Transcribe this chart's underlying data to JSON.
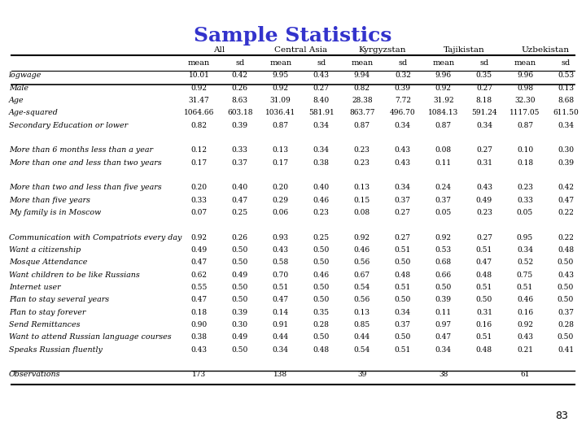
{
  "title": "Sample Statistics",
  "title_color": "#3333CC",
  "page_number": "83",
  "col_groups": [
    "All",
    "Central Asia",
    "Kyrgyzstan",
    "Tajikistan",
    "Uzbekistan"
  ],
  "sub_headers": [
    "mean",
    "sd"
  ],
  "row_labels": [
    "logwage",
    "Male",
    "Age",
    "Age-squared",
    "Secondary Education or lower",
    "",
    "More than 6 months less than a year",
    "More than one and less than two years",
    "",
    "More than two and less than five years",
    "More than five years",
    "My family is in Moscow",
    "",
    "Communication with Compatriots every day",
    "Want a citizenship",
    "Mosque Attendance",
    "Want children to be like Russians",
    "Internet user",
    "Plan to stay several years",
    "Plan to stay forever",
    "Send Remittances",
    "Want to attend Russian language courses",
    "Speaks Russian fluently",
    "",
    "Observations"
  ],
  "data": [
    [
      10.01,
      0.42,
      9.95,
      0.43,
      9.94,
      0.32,
      9.96,
      0.35,
      9.96,
      0.53
    ],
    [
      0.92,
      0.26,
      0.92,
      0.27,
      0.82,
      0.39,
      0.92,
      0.27,
      0.98,
      0.13
    ],
    [
      31.47,
      8.63,
      31.09,
      8.4,
      28.38,
      7.72,
      31.92,
      8.18,
      32.3,
      8.68
    ],
    [
      1064.66,
      603.18,
      1036.41,
      581.91,
      863.77,
      496.7,
      1084.13,
      591.24,
      1117.05,
      611.5
    ],
    [
      0.82,
      0.39,
      0.87,
      0.34,
      0.87,
      0.34,
      0.87,
      0.34,
      0.87,
      0.34
    ],
    [
      null,
      null,
      null,
      null,
      null,
      null,
      null,
      null,
      null,
      null
    ],
    [
      0.12,
      0.33,
      0.13,
      0.34,
      0.23,
      0.43,
      0.08,
      0.27,
      0.1,
      0.3
    ],
    [
      0.17,
      0.37,
      0.17,
      0.38,
      0.23,
      0.43,
      0.11,
      0.31,
      0.18,
      0.39
    ],
    [
      null,
      null,
      null,
      null,
      null,
      null,
      null,
      null,
      null,
      null
    ],
    [
      0.2,
      0.4,
      0.2,
      0.4,
      0.13,
      0.34,
      0.24,
      0.43,
      0.23,
      0.42
    ],
    [
      0.33,
      0.47,
      0.29,
      0.46,
      0.15,
      0.37,
      0.37,
      0.49,
      0.33,
      0.47
    ],
    [
      0.07,
      0.25,
      0.06,
      0.23,
      0.08,
      0.27,
      0.05,
      0.23,
      0.05,
      0.22
    ],
    [
      null,
      null,
      null,
      null,
      null,
      null,
      null,
      null,
      null,
      null
    ],
    [
      0.92,
      0.26,
      0.93,
      0.25,
      0.92,
      0.27,
      0.92,
      0.27,
      0.95,
      0.22
    ],
    [
      0.49,
      0.5,
      0.43,
      0.5,
      0.46,
      0.51,
      0.53,
      0.51,
      0.34,
      0.48
    ],
    [
      0.47,
      0.5,
      0.58,
      0.5,
      0.56,
      0.5,
      0.68,
      0.47,
      0.52,
      0.5
    ],
    [
      0.62,
      0.49,
      0.7,
      0.46,
      0.67,
      0.48,
      0.66,
      0.48,
      0.75,
      0.43
    ],
    [
      0.55,
      0.5,
      0.51,
      0.5,
      0.54,
      0.51,
      0.5,
      0.51,
      0.51,
      0.5
    ],
    [
      0.47,
      0.5,
      0.47,
      0.5,
      0.56,
      0.5,
      0.39,
      0.5,
      0.46,
      0.5
    ],
    [
      0.18,
      0.39,
      0.14,
      0.35,
      0.13,
      0.34,
      0.11,
      0.31,
      0.16,
      0.37
    ],
    [
      0.9,
      0.3,
      0.91,
      0.28,
      0.85,
      0.37,
      0.97,
      0.16,
      0.92,
      0.28
    ],
    [
      0.38,
      0.49,
      0.44,
      0.5,
      0.44,
      0.5,
      0.47,
      0.51,
      0.43,
      0.5
    ],
    [
      0.43,
      0.5,
      0.34,
      0.48,
      0.54,
      0.51,
      0.34,
      0.48,
      0.21,
      0.41
    ],
    [
      null,
      null,
      null,
      null,
      null,
      null,
      null,
      null,
      null,
      null
    ],
    [
      "173",
      "",
      "138",
      "",
      "39",
      "",
      "38",
      "",
      "61",
      ""
    ]
  ],
  "bg_color": "#ffffff",
  "text_color": "#000000",
  "header_color": "#000000",
  "line_color": "#000000"
}
